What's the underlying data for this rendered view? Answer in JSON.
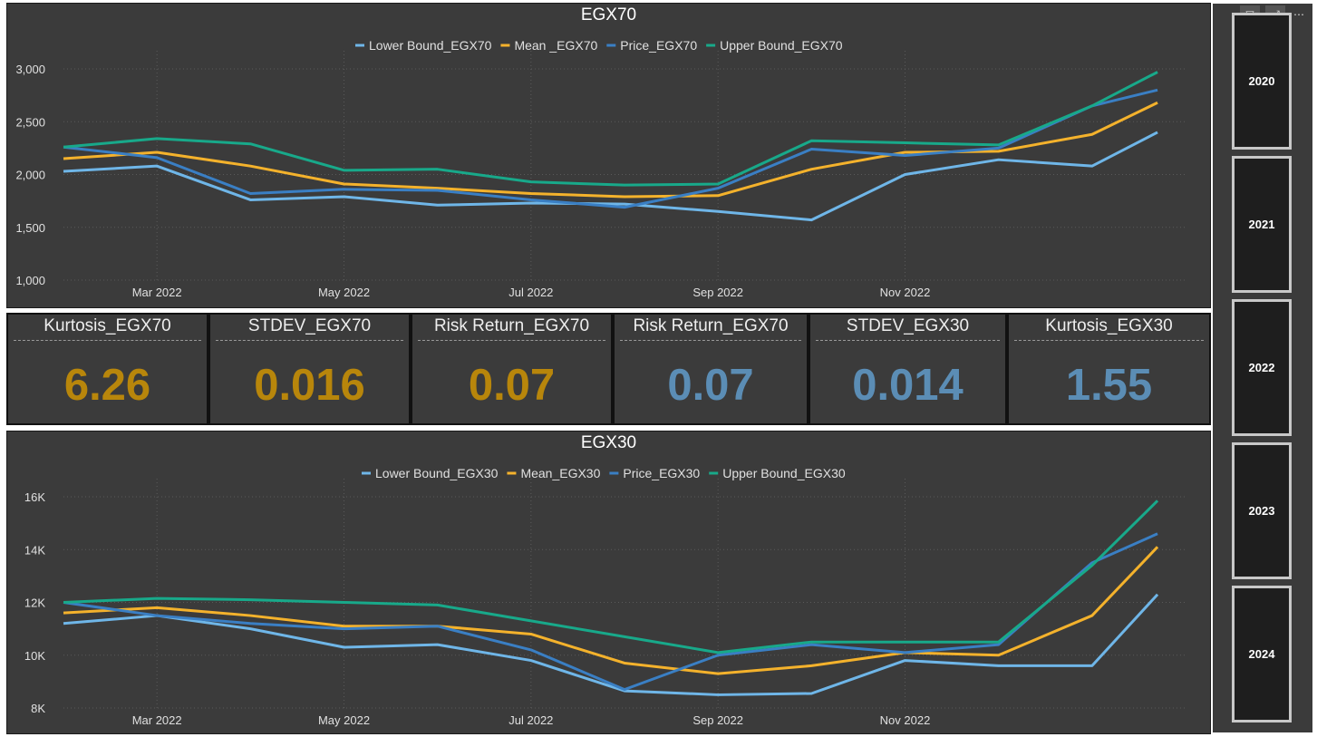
{
  "slicer": {
    "years": [
      "2020",
      "2021",
      "2022",
      "2023",
      "2024"
    ],
    "filter_icon": "filter-icon",
    "focus_icon": "focus-mode-icon",
    "more_icon": "more-options-icon"
  },
  "cards": [
    {
      "label": "Kurtosis_EGX70",
      "value": "6.26",
      "color": "#b8860b"
    },
    {
      "label": "STDEV_EGX70",
      "value": "0.016",
      "color": "#b8860b"
    },
    {
      "label": "Risk Return_EGX70",
      "value": "0.07",
      "color": "#b8860b"
    },
    {
      "label": "Risk Return_EGX70",
      "value": "0.07",
      "color": "#5b8db5"
    },
    {
      "label": "STDEV_EGX30",
      "value": "0.014",
      "color": "#5b8db5"
    },
    {
      "label": "Kurtosis_EGX30",
      "value": "1.55",
      "color": "#5b8db5"
    }
  ],
  "chart_data": [
    {
      "type": "line",
      "title": "EGX70",
      "x_labels": [
        "Mar 2022",
        "May 2022",
        "Jul 2022",
        "Sep 2022",
        "Nov 2022"
      ],
      "y_ticks": [
        "1,000",
        "1,500",
        "2,000",
        "2,500",
        "3,000"
      ],
      "ylim": [
        1000,
        3000
      ],
      "x_months": [
        0,
        1,
        2,
        3,
        4,
        5,
        6,
        7,
        8,
        9,
        10,
        11,
        11.7
      ],
      "legend_position": "top-center",
      "series": [
        {
          "name": "Lower Bound_EGX70",
          "color": "#6fb6e8",
          "values": [
            2030,
            2080,
            1760,
            1790,
            1710,
            1730,
            1720,
            1650,
            1570,
            2000,
            2140,
            2080,
            2400
          ]
        },
        {
          "name": "Mean _EGX70",
          "color": "#f4b22c",
          "values": [
            2150,
            2210,
            2080,
            1910,
            1870,
            1820,
            1790,
            1800,
            2050,
            2210,
            2220,
            2380,
            2680
          ]
        },
        {
          "name": "Price_EGX70",
          "color": "#3a7fc4",
          "values": [
            2260,
            2160,
            1820,
            1860,
            1850,
            1760,
            1690,
            1870,
            2240,
            2180,
            2250,
            2650,
            2800
          ]
        },
        {
          "name": "Upper Bound_EGX70",
          "color": "#18a98a",
          "values": [
            2260,
            2340,
            2290,
            2040,
            2050,
            1930,
            1900,
            1910,
            2320,
            2300,
            2280,
            2650,
            2970
          ]
        }
      ]
    },
    {
      "type": "line",
      "title": "EGX30",
      "x_labels": [
        "Mar 2022",
        "May 2022",
        "Jul 2022",
        "Sep 2022",
        "Nov 2022"
      ],
      "y_ticks": [
        "8K",
        "10K",
        "12K",
        "14K",
        "16K"
      ],
      "ylim": [
        8000,
        16000
      ],
      "x_months": [
        0,
        1,
        2,
        3,
        4,
        5,
        6,
        7,
        8,
        9,
        10,
        11,
        11.7
      ],
      "legend_position": "top-center",
      "series": [
        {
          "name": "Lower Bound_EGX30",
          "color": "#6fb6e8",
          "values": [
            11200,
            11500,
            11000,
            10300,
            10400,
            9800,
            8650,
            8500,
            8550,
            9800,
            9600,
            9600,
            12300
          ]
        },
        {
          "name": "Mean_EGX30",
          "color": "#f4b22c",
          "values": [
            11600,
            11800,
            11500,
            11100,
            11100,
            10800,
            9700,
            9300,
            9600,
            10100,
            10000,
            11500,
            14100
          ]
        },
        {
          "name": "Price_EGX30",
          "color": "#3a7fc4",
          "values": [
            12000,
            11500,
            11200,
            11000,
            11100,
            10200,
            8700,
            10000,
            10400,
            10100,
            10400,
            13500,
            14600
          ]
        },
        {
          "name": "Upper Bound_EGX30",
          "color": "#18a98a",
          "values": [
            12000,
            12150,
            12100,
            12000,
            11900,
            11300,
            10700,
            10100,
            10500,
            10500,
            10500,
            13400,
            15850
          ]
        }
      ]
    }
  ]
}
